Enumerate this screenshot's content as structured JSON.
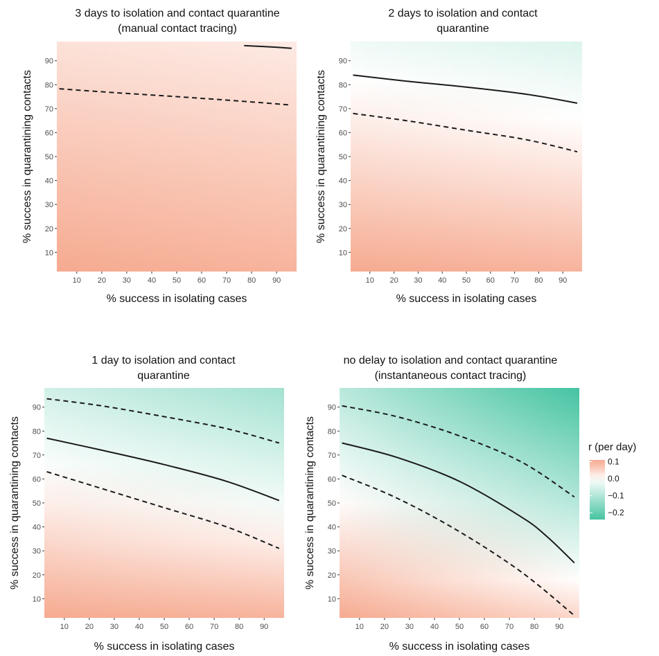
{
  "legend": {
    "title": "r (per day)",
    "ticks": [
      "0.1",
      "0.0",
      "−0.1",
      "−0.2"
    ],
    "tick_values": [
      0.1,
      0.0,
      -0.1,
      -0.2
    ],
    "colors": {
      "positive": "#f6ab91",
      "zero": "#ffffff",
      "negative": "#45c3a1"
    }
  },
  "chart_data": [
    {
      "type": "heatmap",
      "title_lines": [
        "3 days to isolation and contact quarantine",
        "(manual contact tracing)"
      ],
      "xlabel": "% success in isolating cases",
      "ylabel": "% success in quarantining contacts",
      "xlim": [
        2,
        98
      ],
      "ylim": [
        2,
        98
      ],
      "xticks": [
        10,
        20,
        30,
        40,
        50,
        60,
        70,
        80,
        90
      ],
      "yticks": [
        10,
        20,
        30,
        40,
        50,
        60,
        70,
        80,
        90
      ],
      "r_corners": {
        "bottom_left": 0.1,
        "bottom_right": 0.09,
        "top_left": 0.035,
        "top_right": 0.025
      },
      "contours": [
        {
          "style": "solid",
          "points": [
            [
              77,
              96.3
            ],
            [
              87,
              95.8
            ],
            [
              96,
              95.2
            ]
          ]
        },
        {
          "style": "dashed",
          "points": [
            [
              3,
              78.3
            ],
            [
              25,
              76.7
            ],
            [
              50,
              75.0
            ],
            [
              75,
              73.2
            ],
            [
              96,
              71.5
            ]
          ]
        }
      ]
    },
    {
      "type": "heatmap",
      "title_lines": [
        "2 days to isolation and contact",
        "quarantine"
      ],
      "xlabel": "% success in isolating cases",
      "ylabel": "% success in quarantining contacts",
      "xlim": [
        2,
        98
      ],
      "ylim": [
        2,
        98
      ],
      "xticks": [
        10,
        20,
        30,
        40,
        50,
        60,
        70,
        80,
        90
      ],
      "yticks": [
        10,
        20,
        30,
        40,
        50,
        60,
        70,
        80,
        90
      ],
      "r_corners": {
        "bottom_left": 0.1,
        "bottom_right": 0.09,
        "top_left": -0.02,
        "top_right": -0.045
      },
      "contours": [
        {
          "style": "solid",
          "points": [
            [
              3,
              84.0
            ],
            [
              25,
              81.5
            ],
            [
              50,
              79.0
            ],
            [
              75,
              76.0
            ],
            [
              96,
              72.3
            ]
          ]
        },
        {
          "style": "dashed",
          "points": [
            [
              3,
              68.0
            ],
            [
              25,
              65.0
            ],
            [
              50,
              61.0
            ],
            [
              75,
              57.0
            ],
            [
              96,
              52.0
            ]
          ]
        }
      ]
    },
    {
      "type": "heatmap",
      "title_lines": [
        "1 day to isolation and contact",
        "quarantine"
      ],
      "xlabel": "% success in isolating cases",
      "ylabel": "% success in quarantining contacts",
      "xlim": [
        2,
        98
      ],
      "ylim": [
        2,
        98
      ],
      "xticks": [
        10,
        20,
        30,
        40,
        50,
        60,
        70,
        80,
        90
      ],
      "yticks": [
        10,
        20,
        30,
        40,
        50,
        60,
        70,
        80,
        90
      ],
      "r_corners": {
        "bottom_left": 0.1,
        "bottom_right": 0.09,
        "top_left": -0.06,
        "top_right": -0.12
      },
      "contours": [
        {
          "style": "solid",
          "points": [
            [
              3,
              77.0
            ],
            [
              25,
              72.0
            ],
            [
              50,
              66.0
            ],
            [
              75,
              59.0
            ],
            [
              96,
              51.0
            ]
          ]
        },
        {
          "style": "dashed",
          "points": [
            [
              3,
              93.5
            ],
            [
              25,
              90.5
            ],
            [
              50,
              86.0
            ],
            [
              75,
              81.0
            ],
            [
              96,
              75.0
            ]
          ]
        },
        {
          "style": "dashed",
          "points": [
            [
              3,
              63.0
            ],
            [
              25,
              56.0
            ],
            [
              50,
              48.0
            ],
            [
              75,
              40.0
            ],
            [
              96,
              31.0
            ]
          ]
        }
      ]
    },
    {
      "type": "heatmap",
      "title_lines": [
        "no delay to isolation and contact quarantine",
        "(instantaneous contact tracing)"
      ],
      "xlabel": "% success in isolating cases",
      "ylabel": "% success in quarantining contacts",
      "xlim": [
        2,
        98
      ],
      "ylim": [
        2,
        98
      ],
      "xticks": [
        10,
        20,
        30,
        40,
        50,
        60,
        70,
        80,
        90
      ],
      "yticks": [
        10,
        20,
        30,
        40,
        50,
        60,
        70,
        80,
        90
      ],
      "r_corners": {
        "bottom_left": 0.1,
        "bottom_right": 0.05,
        "top_left": -0.09,
        "top_right": -0.24
      },
      "contours": [
        {
          "style": "solid",
          "points": [
            [
              3,
              75.0
            ],
            [
              25,
              69.0
            ],
            [
              50,
              59.0
            ],
            [
              75,
              44.0
            ],
            [
              85,
              36.0
            ],
            [
              96,
              25.0
            ]
          ]
        },
        {
          "style": "dashed",
          "points": [
            [
              3,
              90.5
            ],
            [
              25,
              86.0
            ],
            [
              50,
              78.0
            ],
            [
              75,
              67.0
            ],
            [
              96,
              52.5
            ]
          ]
        },
        {
          "style": "dashed",
          "points": [
            [
              3,
              61.5
            ],
            [
              25,
              52.0
            ],
            [
              50,
              38.0
            ],
            [
              75,
              21.0
            ],
            [
              96,
              3.0
            ]
          ]
        }
      ]
    }
  ]
}
